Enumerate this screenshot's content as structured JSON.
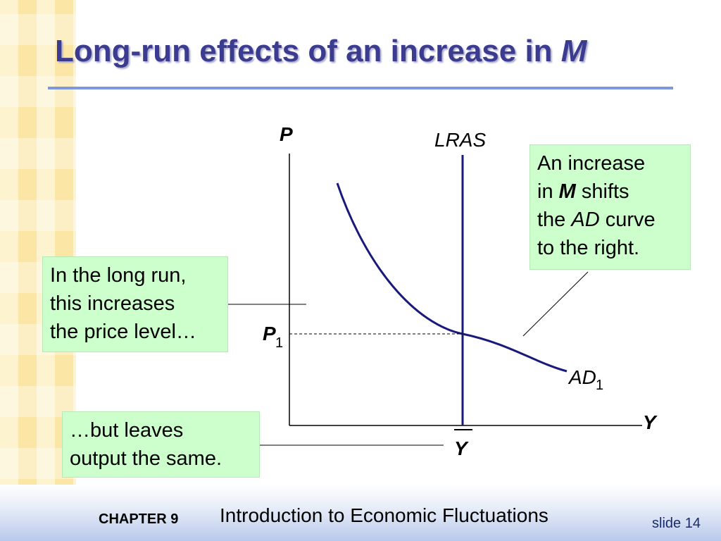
{
  "title": {
    "main": "Long-run effects of an increase in ",
    "italic": "M"
  },
  "diagram": {
    "axis_y_label": "P",
    "axis_x_label": "Y",
    "lras_label": "LRAS",
    "ad_label": "AD",
    "ad_sub": "1",
    "p1_label": "P",
    "p1_sub": "1",
    "ybar_label": "Y"
  },
  "callouts": {
    "right": {
      "l1": "An increase",
      "l2a": "in ",
      "l2b": "M",
      "l2c": " shifts",
      "l3a": "the ",
      "l3b": "AD",
      "l3c": " curve",
      "l4": "to the right."
    },
    "left_top": {
      "l1": "In the long run,",
      "l2": "this increases",
      "l3": "the price level…"
    },
    "left_bottom": {
      "l1": "…but leaves",
      "l2": "output the same."
    }
  },
  "footer": {
    "chapter": "CHAPTER 9",
    "subtitle": "Introduction to Economic Fluctuations",
    "slide": "slide 14"
  },
  "colors": {
    "title": "#3b3b8f",
    "curve": "#1a1a7a",
    "callout_bg": "#ccffcc",
    "rule": "#7d99d9"
  }
}
